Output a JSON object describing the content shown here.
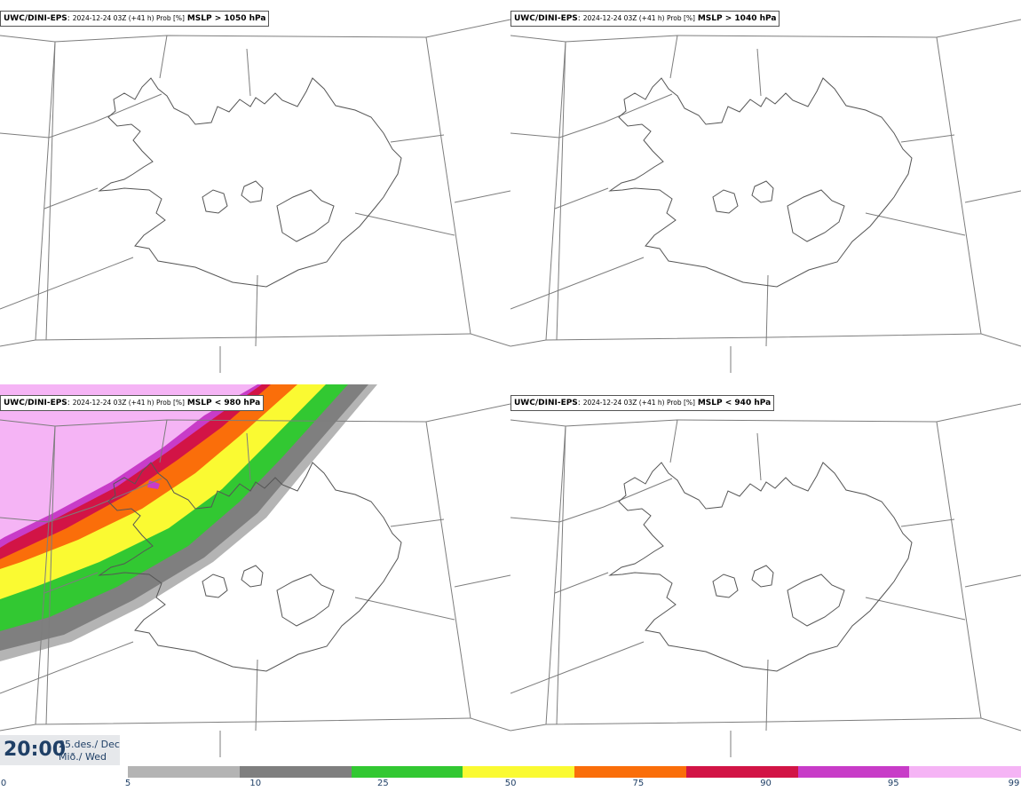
{
  "panels": [
    {
      "model": "UWC/DINI-EPS",
      "run": "2024-12-24 03Z (+41 h) Prob [%]",
      "var": "MSLP > 1050 hPa"
    },
    {
      "model": "UWC/DINI-EPS",
      "run": "2024-12-24 03Z (+41 h) Prob [%]",
      "var": "MSLP > 1040 hPa"
    },
    {
      "model": "UWC/DINI-EPS",
      "run": "2024-12-24 03Z (+41 h) Prob [%]",
      "var": "MSLP < 980 hPa"
    },
    {
      "model": "UWC/DINI-EPS",
      "run": "2024-12-24 03Z (+41 h) Prob [%]",
      "var": "MSLP < 940 hPa"
    }
  ],
  "time": {
    "clock": "20:00",
    "date_line1": "25.des./ Dec",
    "date_line2": "Mið./ Wed"
  },
  "legend": {
    "ticks": [
      "0",
      "5",
      "10",
      "25",
      "50",
      "75",
      "90",
      "95",
      "99"
    ],
    "colors": [
      "#ffffff",
      "#b4b4b4",
      "#7f7f7f",
      "#32c832",
      "#fafa32",
      "#fa6e0a",
      "#d21446",
      "#c83cc8",
      "#f5b4f5"
    ]
  }
}
